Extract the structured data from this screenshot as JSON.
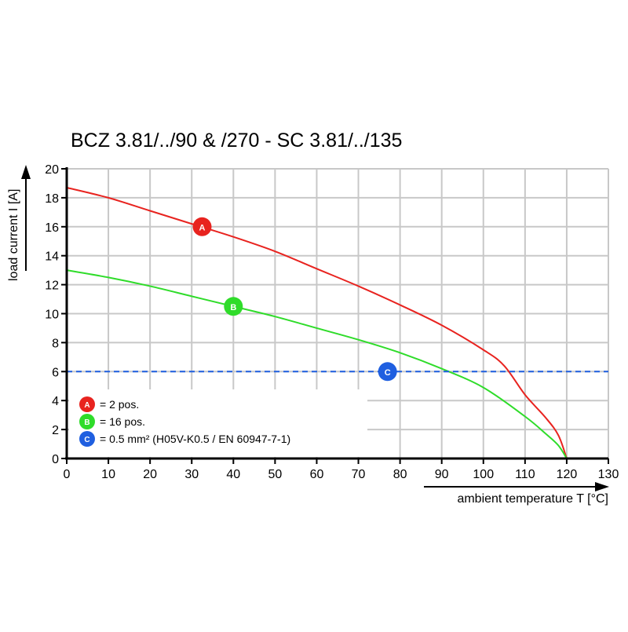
{
  "chart_data": {
    "type": "line",
    "title": "BCZ 3.81/../90 & /270 - SC 3.81/../135",
    "xlabel": "ambient temperature T [°C]",
    "ylabel": "load current I [A]",
    "xlim": [
      0,
      130
    ],
    "ylim": [
      0,
      20
    ],
    "xticks": [
      0,
      10,
      20,
      30,
      40,
      50,
      60,
      70,
      80,
      90,
      100,
      110,
      120,
      130
    ],
    "yticks": [
      0,
      2,
      4,
      6,
      8,
      10,
      12,
      14,
      16,
      18,
      20
    ],
    "grid": true,
    "legend_placement": "bottom-left",
    "series": [
      {
        "marker": "A",
        "legend": "= 2 pos.",
        "color": "#e8231f",
        "x": [
          0,
          10,
          20,
          30,
          40,
          50,
          60,
          70,
          80,
          90,
          100,
          105,
          110,
          115,
          118,
          120
        ],
        "y": [
          18.7,
          18.0,
          17.1,
          16.2,
          15.3,
          14.3,
          13.1,
          11.9,
          10.6,
          9.2,
          7.5,
          6.4,
          4.4,
          2.8,
          1.6,
          0
        ],
        "marker_at": [
          32.5,
          16
        ]
      },
      {
        "marker": "B",
        "legend": "= 16 pos.",
        "color": "#2fdc2a",
        "x": [
          0,
          10,
          20,
          30,
          40,
          50,
          60,
          70,
          80,
          90,
          100,
          110,
          115,
          118,
          120
        ],
        "y": [
          13,
          12.5,
          11.9,
          11.2,
          10.5,
          9.8,
          9.0,
          8.2,
          7.3,
          6.2,
          4.9,
          2.9,
          1.7,
          0.9,
          0
        ],
        "marker_at": [
          40,
          10.5
        ]
      },
      {
        "marker": "C",
        "legend": "= 0.5 mm² (H05V-K0.5 / EN 60947-7-1)",
        "color": "#1f5fe0",
        "style": "dashed",
        "x": [
          0,
          130
        ],
        "y": [
          6,
          6
        ],
        "marker_at": [
          77,
          6
        ]
      }
    ]
  }
}
